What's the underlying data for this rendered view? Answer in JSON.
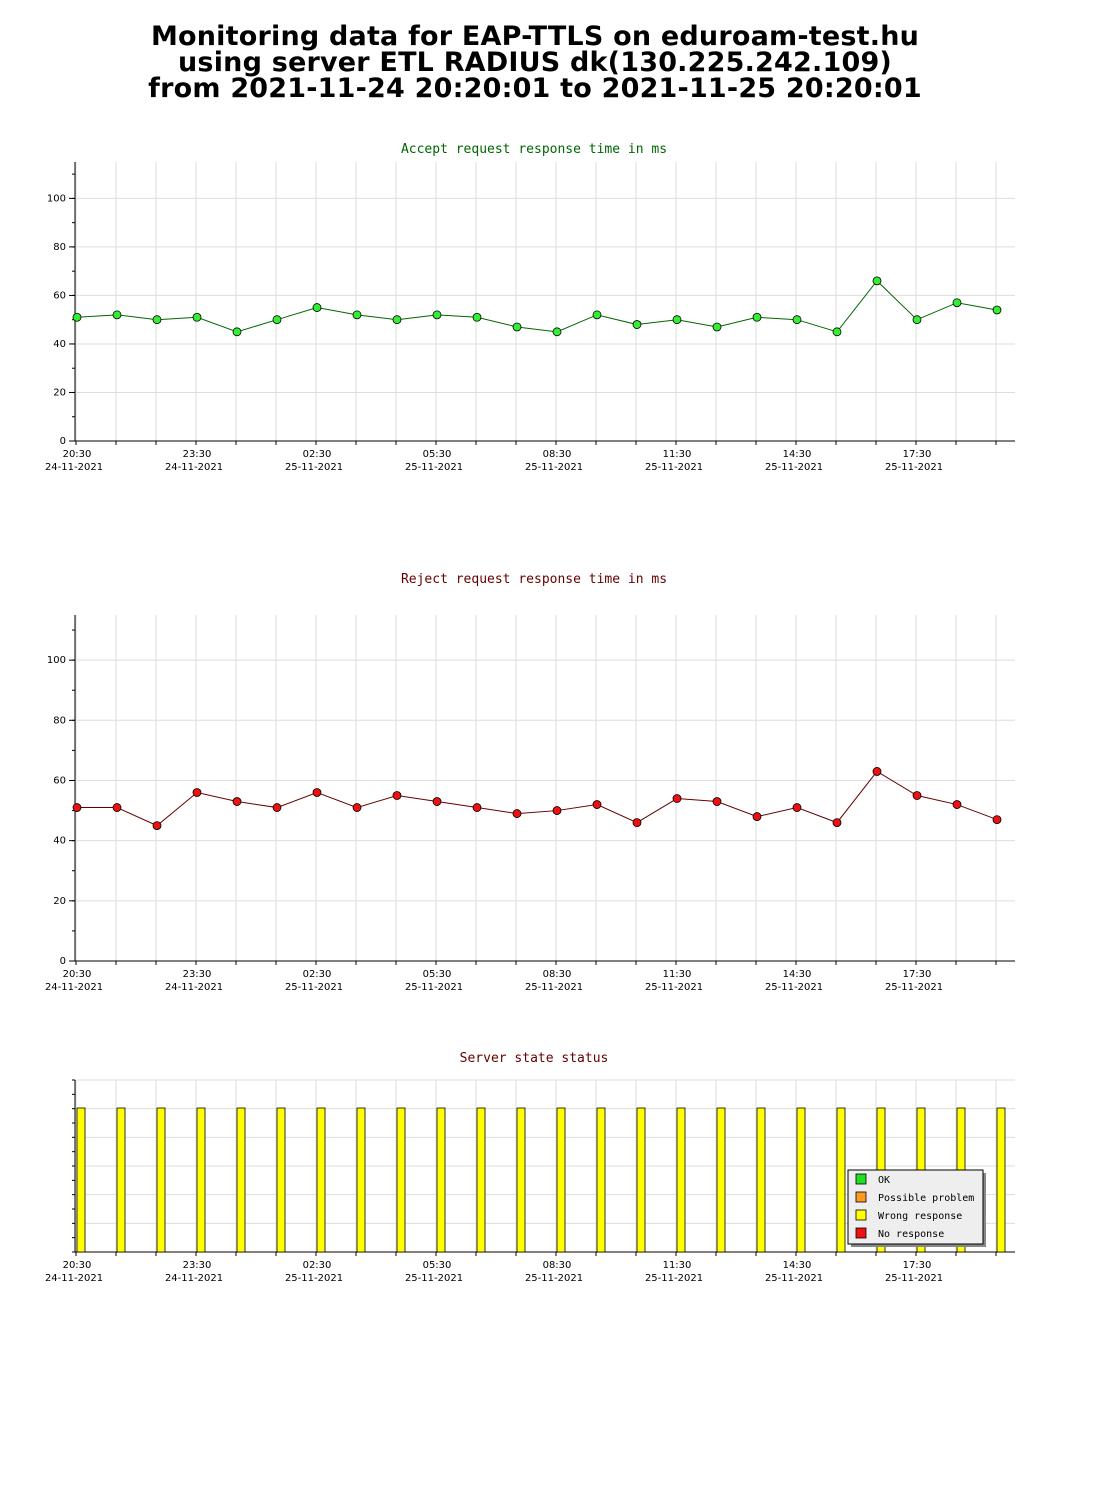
{
  "title": {
    "line1": "Monitoring data for EAP-TTLS on eduroam-test.hu",
    "line2": "using server ETL RADIUS dk(130.225.242.109)",
    "line3": "from 2021-11-24 20:20:01 to 2021-11-25 20:20:01"
  },
  "x_ticks": [
    {
      "time": "20:30",
      "date": "24-11-2021"
    },
    {
      "time": "23:30",
      "date": "24-11-2021"
    },
    {
      "time": "02:30",
      "date": "25-11-2021"
    },
    {
      "time": "05:30",
      "date": "25-11-2021"
    },
    {
      "time": "08:30",
      "date": "25-11-2021"
    },
    {
      "time": "11:30",
      "date": "25-11-2021"
    },
    {
      "time": "14:30",
      "date": "25-11-2021"
    },
    {
      "time": "17:30",
      "date": "25-11-2021"
    }
  ],
  "chart_data": [
    {
      "type": "line",
      "title": "Accept request response time in ms",
      "title_color": "#006600",
      "marker_color": "#33ee33",
      "line_color": "#006600",
      "ylim": [
        0,
        115
      ],
      "yticks": [
        0,
        20,
        40,
        60,
        80,
        100
      ],
      "grid": true,
      "x": [
        "20:30",
        "21:30",
        "22:30",
        "23:30",
        "00:30",
        "01:30",
        "02:30",
        "03:30",
        "04:30",
        "05:30",
        "06:30",
        "07:30",
        "08:30",
        "09:30",
        "10:30",
        "11:30",
        "12:30",
        "13:30",
        "14:30",
        "15:30",
        "16:30",
        "17:30",
        "18:30",
        "19:30"
      ],
      "values": [
        51,
        52,
        50,
        51,
        45,
        50,
        55,
        52,
        50,
        52,
        51,
        47,
        45,
        52,
        48,
        50,
        47,
        51,
        50,
        45,
        66,
        50,
        57,
        54
      ]
    },
    {
      "type": "line",
      "title": "Reject request response time in ms",
      "title_color": "#660000",
      "marker_color": "#ee1111",
      "line_color": "#660000",
      "ylim": [
        0,
        115
      ],
      "yticks": [
        0,
        20,
        40,
        60,
        80,
        100
      ],
      "grid": true,
      "x": [
        "20:30",
        "21:30",
        "22:30",
        "23:30",
        "00:30",
        "01:30",
        "02:30",
        "03:30",
        "04:30",
        "05:30",
        "06:30",
        "07:30",
        "08:30",
        "09:30",
        "10:30",
        "11:30",
        "12:30",
        "13:30",
        "14:30",
        "15:30",
        "16:30",
        "17:30",
        "18:30",
        "19:30"
      ],
      "values": [
        51,
        51,
        45,
        56,
        53,
        51,
        56,
        51,
        55,
        53,
        51,
        49,
        50,
        52,
        46,
        54,
        53,
        48,
        51,
        46,
        63,
        55,
        52,
        47
      ]
    },
    {
      "type": "bar",
      "title": "Server state status",
      "title_color": "#660000",
      "grid": true,
      "x": [
        "20:30",
        "21:30",
        "22:30",
        "23:30",
        "00:30",
        "01:30",
        "02:30",
        "03:30",
        "04:30",
        "05:30",
        "06:30",
        "07:30",
        "08:30",
        "09:30",
        "10:30",
        "11:30",
        "12:30",
        "13:30",
        "14:30",
        "15:30",
        "16:30",
        "17:30",
        "18:30",
        "19:30"
      ],
      "states": [
        "Wrong response",
        "Wrong response",
        "Wrong response",
        "Wrong response",
        "Wrong response",
        "Wrong response",
        "Wrong response",
        "Wrong response",
        "Wrong response",
        "Wrong response",
        "Wrong response",
        "Wrong response",
        "Wrong response",
        "Wrong response",
        "Wrong response",
        "Wrong response",
        "Wrong response",
        "Wrong response",
        "Wrong response",
        "Wrong response",
        "Wrong response",
        "Wrong response",
        "Wrong response",
        "Wrong response"
      ],
      "legend_position": "bottom-right",
      "legend": [
        {
          "label": "OK",
          "color": "#22dd22"
        },
        {
          "label": "Possible problem",
          "color": "#ff9922"
        },
        {
          "label": "Wrong response",
          "color": "#ffff00"
        },
        {
          "label": "No response",
          "color": "#ee1111"
        }
      ]
    }
  ]
}
